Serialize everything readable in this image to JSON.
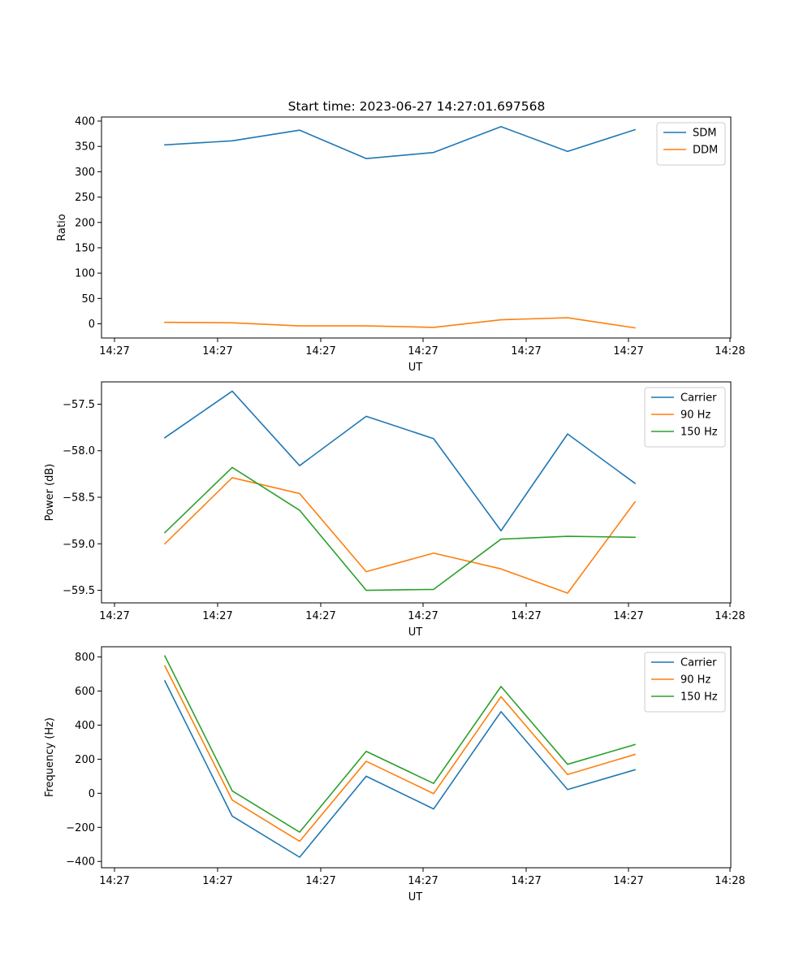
{
  "figure_title": "Start time: 2023-06-27 14:27:01.697568",
  "colors": {
    "blue": "#1f77b4",
    "orange": "#ff7f0e",
    "green": "#2ca02c"
  },
  "chart_data": [
    {
      "type": "line",
      "title": "Start time: 2023-06-27 14:27:01.697568",
      "xlabel": "UT",
      "ylabel": "Ratio",
      "x_tick_labels": [
        "14:27",
        "14:27",
        "14:27",
        "14:27",
        "14:27",
        "14:27",
        "14:28"
      ],
      "y_ticks": [
        0,
        50,
        100,
        150,
        200,
        250,
        300,
        350,
        400
      ],
      "ylim": [
        -28,
        408
      ],
      "legend_position": "top-right",
      "series": [
        {
          "name": "SDM",
          "color": "#1f77b4",
          "values": [
            353,
            361,
            382,
            326,
            338,
            389,
            340,
            383
          ]
        },
        {
          "name": "DDM",
          "color": "#ff7f0e",
          "values": [
            3,
            2,
            -4,
            -4,
            -7,
            8,
            12,
            -8
          ]
        }
      ]
    },
    {
      "type": "line",
      "xlabel": "UT",
      "ylabel": "Power (dB)",
      "x_tick_labels": [
        "14:27",
        "14:27",
        "14:27",
        "14:27",
        "14:27",
        "14:27",
        "14:28"
      ],
      "y_ticks": [
        -59.5,
        -59.0,
        -58.5,
        -58.0,
        -57.5
      ],
      "y_tick_labels": [
        "−59.5",
        "−59.0",
        "−58.5",
        "−58.0",
        "−57.5"
      ],
      "ylim": [
        -59.635,
        -57.26
      ],
      "legend_position": "top-right",
      "series": [
        {
          "name": "Carrier",
          "color": "#1f77b4",
          "values": [
            -57.86,
            -57.36,
            -58.16,
            -57.63,
            -57.87,
            -58.86,
            -57.82,
            -58.35
          ]
        },
        {
          "name": "90 Hz",
          "color": "#ff7f0e",
          "values": [
            -59.0,
            -58.29,
            -58.46,
            -59.3,
            -59.1,
            -59.27,
            -59.53,
            -58.55
          ]
        },
        {
          "name": "150 Hz",
          "color": "#2ca02c",
          "values": [
            -58.88,
            -58.18,
            -58.64,
            -59.5,
            -59.49,
            -58.95,
            -58.92,
            -58.93
          ]
        }
      ]
    },
    {
      "type": "line",
      "xlabel": "UT",
      "ylabel": "Frequency (Hz)",
      "x_tick_labels": [
        "14:27",
        "14:27",
        "14:27",
        "14:27",
        "14:27",
        "14:27",
        "14:28"
      ],
      "y_ticks": [
        -400,
        -200,
        0,
        200,
        400,
        600,
        800
      ],
      "y_tick_labels": [
        "−400",
        "−200",
        "0",
        "200",
        "400",
        "600",
        "800"
      ],
      "ylim": [
        -437,
        860
      ],
      "legend_position": "top-right",
      "series": [
        {
          "name": "Carrier",
          "color": "#1f77b4",
          "values": [
            660,
            -134,
            -375,
            100,
            -92,
            479,
            22,
            138
          ]
        },
        {
          "name": "90 Hz",
          "color": "#ff7f0e",
          "values": [
            748,
            -40,
            -282,
            188,
            -2,
            567,
            110,
            228
          ]
        },
        {
          "name": "150 Hz",
          "color": "#2ca02c",
          "values": [
            806,
            14,
            -228,
            246,
            58,
            627,
            170,
            286
          ]
        }
      ]
    }
  ]
}
